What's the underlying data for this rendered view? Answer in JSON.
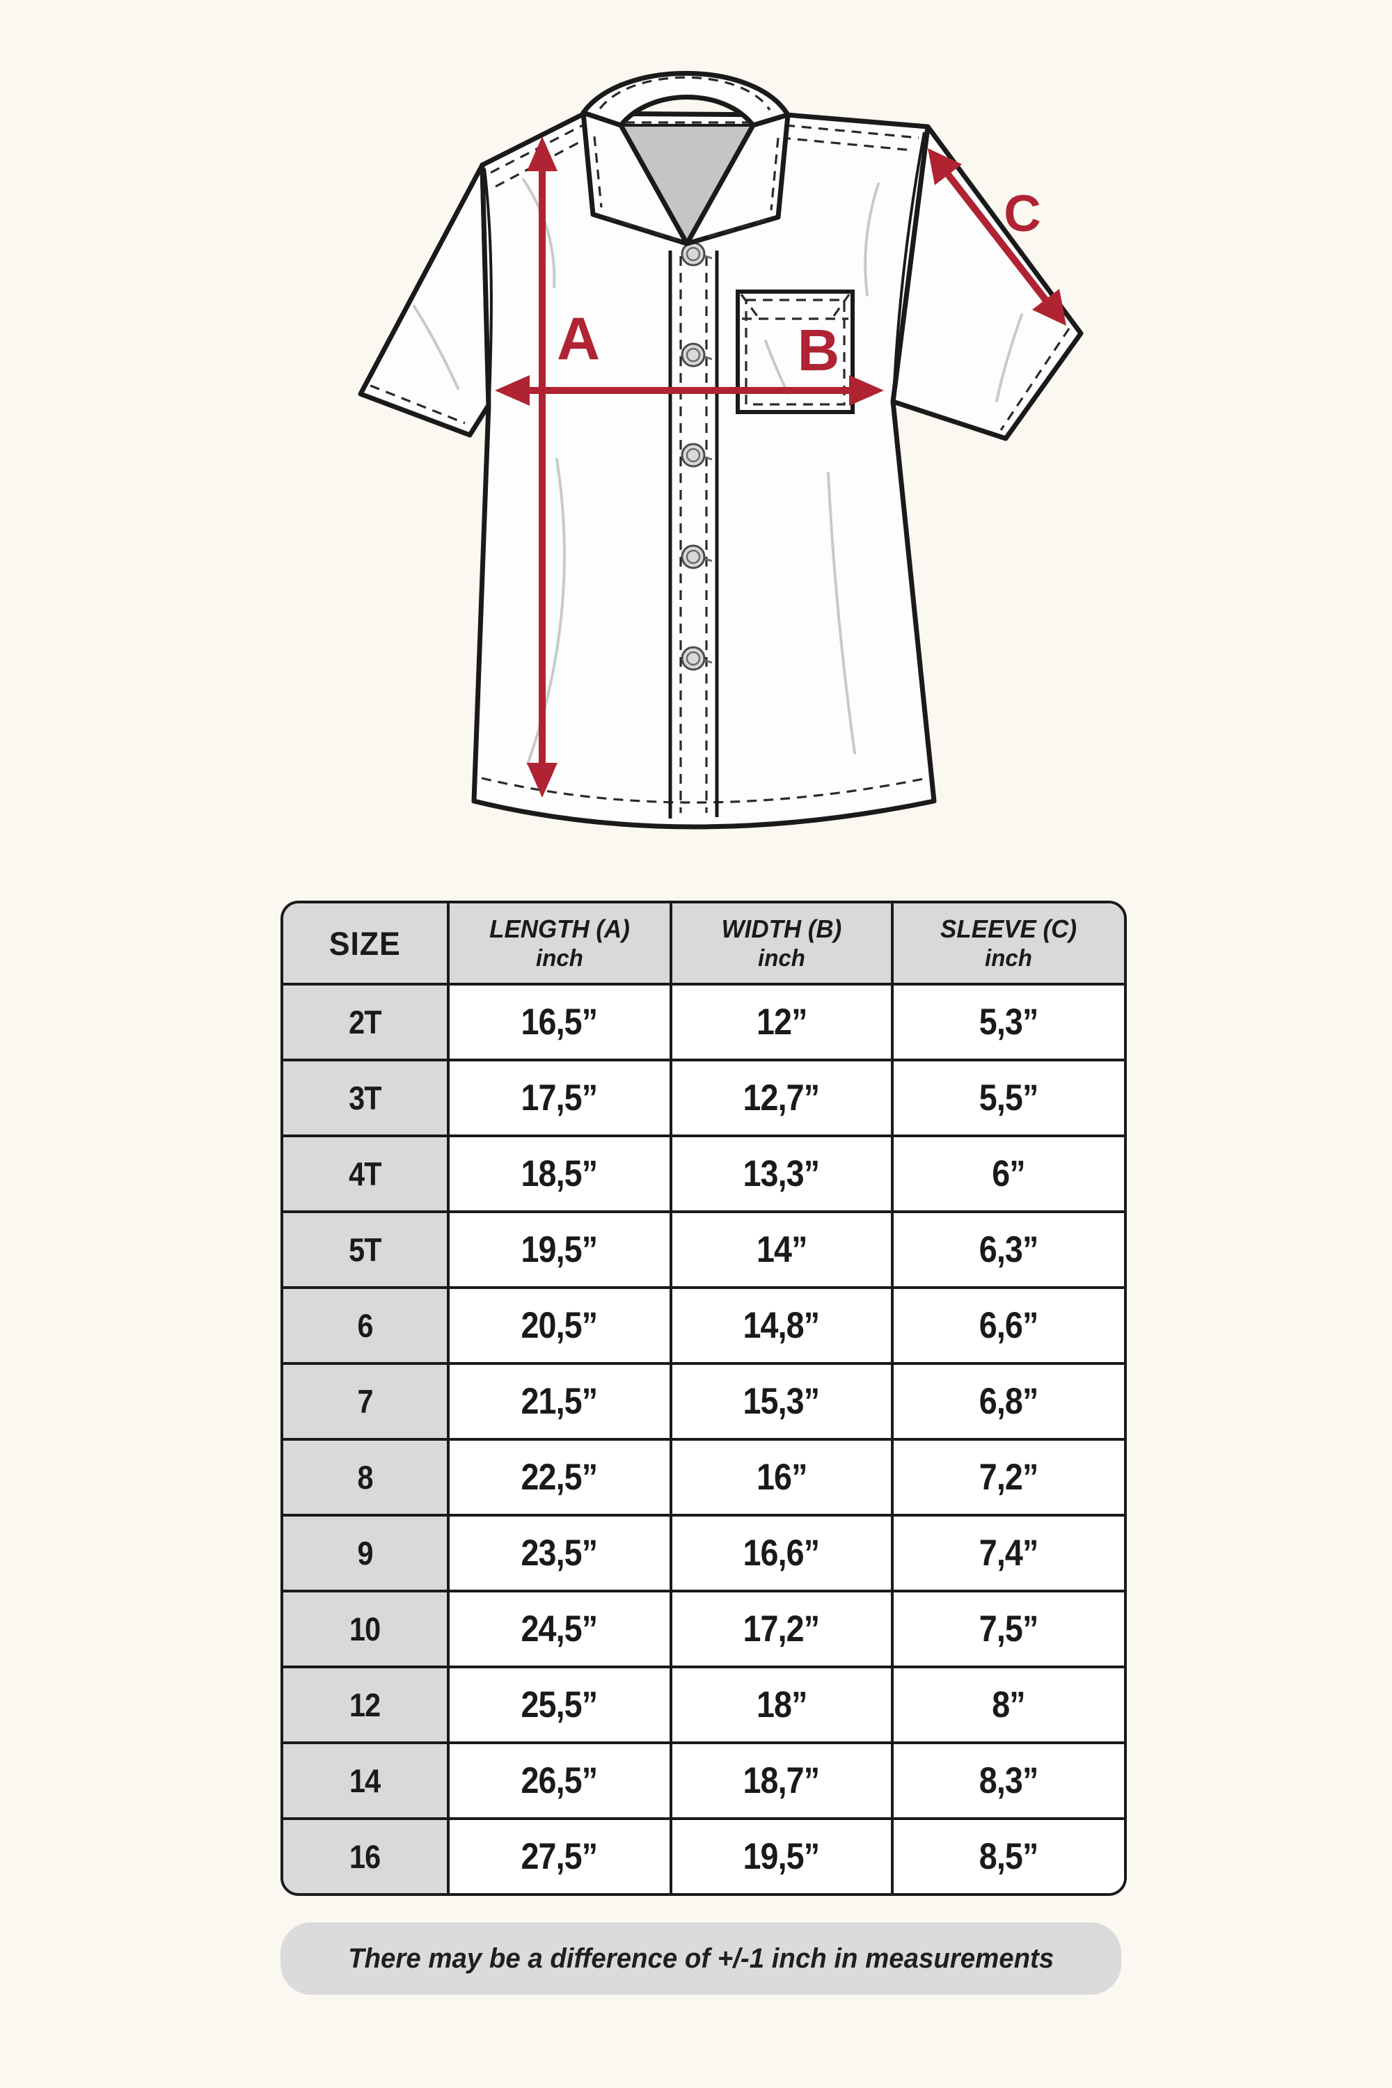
{
  "diagram": {
    "labels": {
      "length": "A",
      "width": "B",
      "sleeve": "C"
    },
    "arrow_color": "#b02332"
  },
  "table": {
    "headers": {
      "size": {
        "line1": "SIZE"
      },
      "length": {
        "line1": "LENGTH (A)",
        "line2": "inch"
      },
      "width": {
        "line1": "WIDTH (B)",
        "line2": "inch"
      },
      "sleeve": {
        "line1": "SLEEVE (C)",
        "line2": "inch"
      }
    },
    "rows": [
      {
        "size": "2T",
        "length": "16,5”",
        "width": "12”",
        "sleeve": "5,3”"
      },
      {
        "size": "3T",
        "length": "17,5”",
        "width": "12,7”",
        "sleeve": "5,5”"
      },
      {
        "size": "4T",
        "length": "18,5”",
        "width": "13,3”",
        "sleeve": "6”"
      },
      {
        "size": "5T",
        "length": "19,5”",
        "width": "14”",
        "sleeve": "6,3”"
      },
      {
        "size": "6",
        "length": "20,5”",
        "width": "14,8”",
        "sleeve": "6,6”"
      },
      {
        "size": "7",
        "length": "21,5”",
        "width": "15,3”",
        "sleeve": "6,8”"
      },
      {
        "size": "8",
        "length": "22,5”",
        "width": "16”",
        "sleeve": "7,2”"
      },
      {
        "size": "9",
        "length": "23,5”",
        "width": "16,6”",
        "sleeve": "7,4”"
      },
      {
        "size": "10",
        "length": "24,5”",
        "width": "17,2”",
        "sleeve": "7,5”"
      },
      {
        "size": "12",
        "length": "25,5”",
        "width": "18”",
        "sleeve": "8”"
      },
      {
        "size": "14",
        "length": "26,5”",
        "width": "18,7”",
        "sleeve": "8,3”"
      },
      {
        "size": "16",
        "length": "27,5”",
        "width": "19,5”",
        "sleeve": "8,5”"
      }
    ]
  },
  "footer": {
    "note": "There may be a difference of +/-1 inch in measurements"
  },
  "colors": {
    "accent_red": "#b02332",
    "table_gray": "#d9d9d9",
    "pill_gray": "#dbdbdb",
    "ink": "#1a1a1a"
  }
}
